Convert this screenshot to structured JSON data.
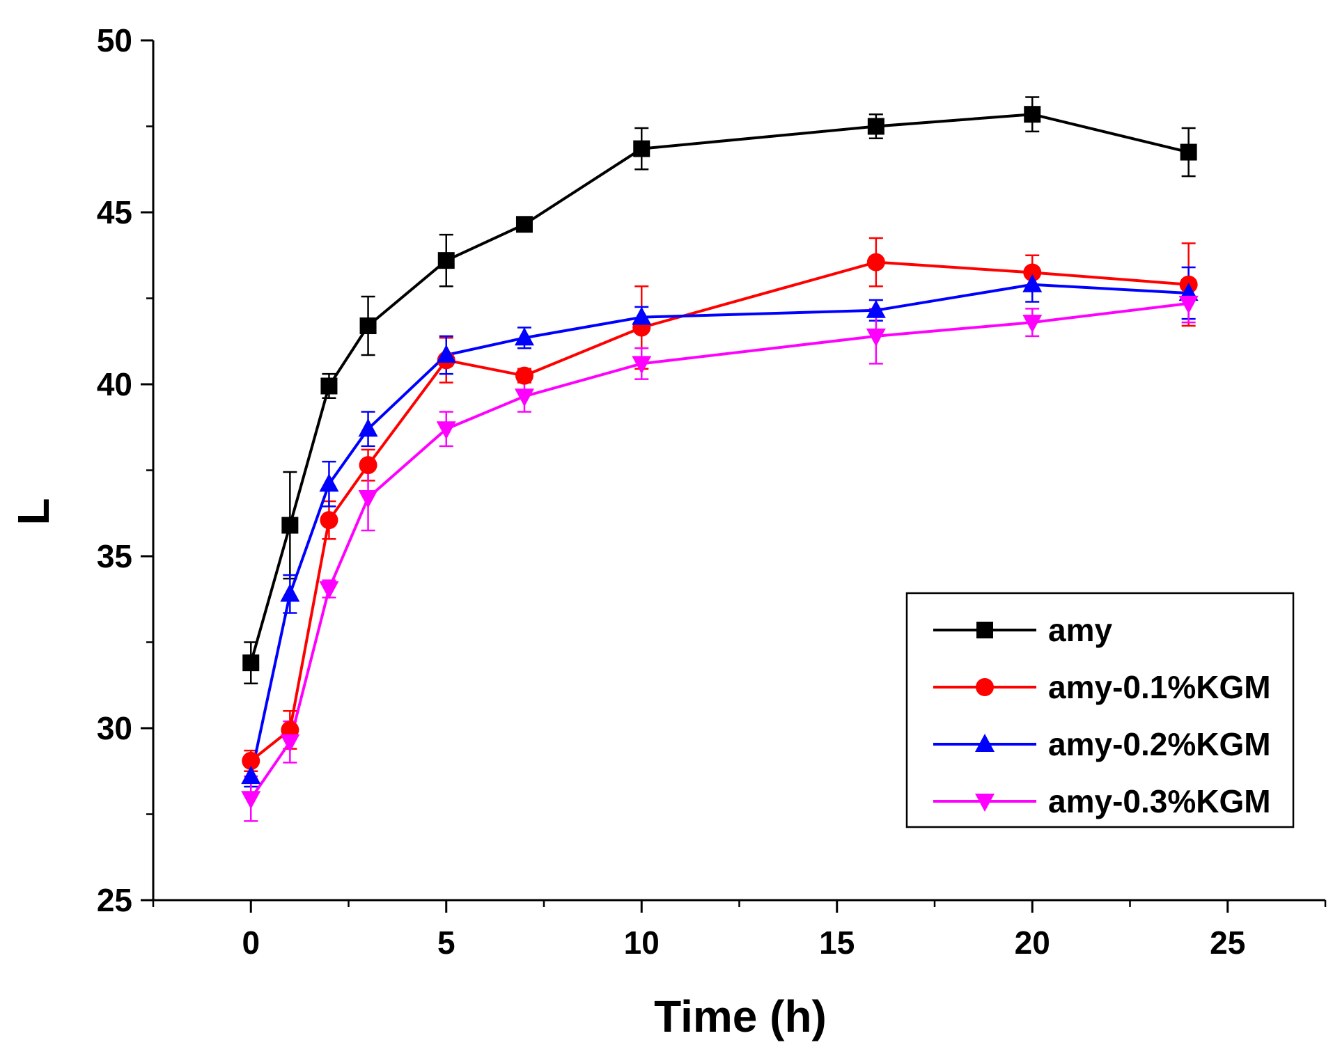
{
  "chart_data": {
    "type": "line",
    "title": "",
    "xlabel": "Time (h)",
    "ylabel": "L",
    "xlim": [
      -2.5,
      27.5
    ],
    "ylim": [
      25,
      50
    ],
    "xticks": [
      0,
      5,
      10,
      15,
      20,
      25
    ],
    "yticks": [
      25,
      30,
      35,
      40,
      45,
      50
    ],
    "x": [
      0,
      1,
      2,
      3,
      5,
      7,
      10,
      16,
      20,
      24
    ],
    "legend_position": "lower-right",
    "series": [
      {
        "name": "amy",
        "color": "#000000",
        "marker": "square",
        "values": [
          31.9,
          35.9,
          39.95,
          41.7,
          43.6,
          44.65,
          46.85,
          47.5,
          47.85,
          46.75
        ],
        "errors": [
          0.6,
          1.55,
          0.35,
          0.85,
          0.75,
          0.15,
          0.6,
          0.35,
          0.5,
          0.7
        ]
      },
      {
        "name": "amy-0.1%KGM",
        "color": "#ff0000",
        "marker": "circle",
        "values": [
          29.05,
          29.95,
          36.05,
          37.65,
          40.7,
          40.25,
          41.65,
          43.55,
          43.25,
          42.9
        ],
        "errors": [
          0.3,
          0.55,
          0.55,
          0.45,
          0.65,
          0.2,
          1.2,
          0.7,
          0.5,
          1.2
        ]
      },
      {
        "name": "amy-0.2%KGM",
        "color": "#0000ff",
        "marker": "triangle-up",
        "values": [
          28.6,
          33.9,
          37.1,
          38.7,
          40.85,
          41.35,
          41.95,
          42.15,
          42.9,
          42.65
        ],
        "errors": [
          0.3,
          0.55,
          0.65,
          0.5,
          0.55,
          0.3,
          0.3,
          0.3,
          0.5,
          0.75
        ]
      },
      {
        "name": "amy-0.3%KGM",
        "color": "#ff00ff",
        "marker": "triangle-down",
        "values": [
          27.95,
          29.6,
          34.05,
          36.7,
          38.7,
          39.65,
          40.6,
          41.4,
          41.8,
          42.35
        ],
        "errors": [
          0.65,
          0.6,
          0.25,
          0.95,
          0.5,
          0.45,
          0.45,
          0.8,
          0.4,
          0.55
        ]
      }
    ]
  }
}
